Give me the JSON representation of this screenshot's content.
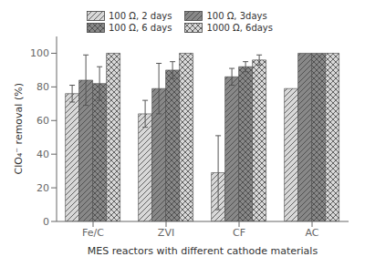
{
  "chart_data": {
    "type": "bar",
    "categories": [
      "Fe/C",
      "ZVI",
      "CF",
      "AC"
    ],
    "series": [
      {
        "name": "100 Ω, 2 days",
        "color": "#d8d8d8",
        "values": [
          76,
          64,
          29,
          79
        ],
        "errors": [
          5,
          8,
          22,
          0
        ]
      },
      {
        "name": "100 Ω, 3days",
        "color": "#888888",
        "values": [
          84,
          79,
          86,
          100
        ],
        "errors": [
          15,
          15,
          5,
          0
        ]
      },
      {
        "name": "100 Ω, 6 days",
        "color": "#888888",
        "values": [
          82,
          90,
          92,
          100
        ],
        "errors": [
          10,
          5,
          3,
          0
        ]
      },
      {
        "name": "1000 Ω, 6days",
        "color": "#d8d8d8",
        "values": [
          100,
          100,
          96,
          100
        ],
        "errors": [
          0,
          0,
          3,
          0
        ]
      }
    ],
    "xlabel": "MES reactors with different cathode materials",
    "ylabel": "ClO₄⁻ removal (%)",
    "ylim": [
      0,
      110
    ],
    "yticks": [
      0,
      20,
      40,
      60,
      80,
      100
    ],
    "grid": false,
    "legend": "top"
  }
}
